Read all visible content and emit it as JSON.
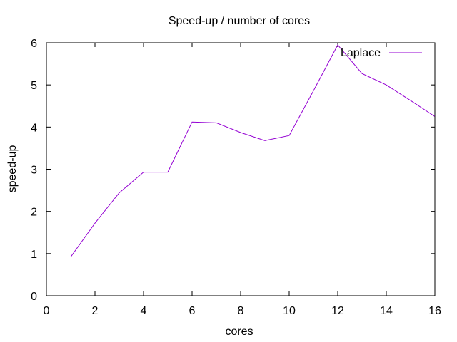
{
  "chart_data": {
    "type": "line",
    "title": "Speed-up / number of cores",
    "xlabel": "cores",
    "ylabel": "speed-up",
    "xlim": [
      0,
      16
    ],
    "ylim": [
      0,
      6
    ],
    "xticks": [
      0,
      2,
      4,
      6,
      8,
      10,
      12,
      14,
      16
    ],
    "yticks": [
      0,
      1,
      2,
      3,
      4,
      5,
      6
    ],
    "grid": false,
    "legend_position": "top-right",
    "series": [
      {
        "name": "Laplace",
        "color": "#9400D3",
        "x": [
          1,
          2,
          3,
          4,
          5,
          6,
          7,
          8,
          9,
          10,
          11,
          12,
          13,
          14,
          15,
          16
        ],
        "y": [
          0.92,
          1.72,
          2.44,
          2.93,
          2.93,
          4.12,
          4.1,
          3.87,
          3.68,
          3.8,
          4.86,
          5.95,
          5.27,
          5.0,
          4.63,
          4.25
        ]
      }
    ]
  }
}
